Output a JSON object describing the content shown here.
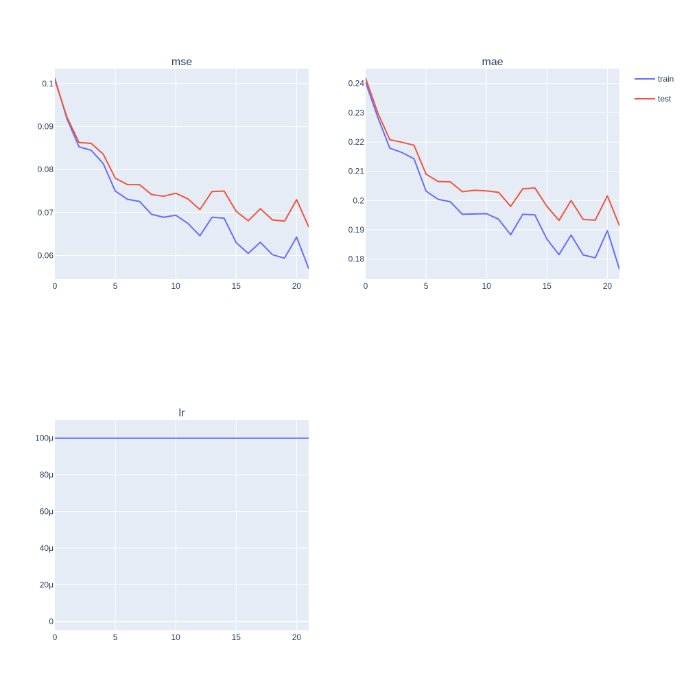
{
  "chart_data": [
    {
      "type": "line",
      "title": "mse",
      "xlim": [
        0,
        21
      ],
      "ylim": [
        0.0545,
        0.1035
      ],
      "x_ticks": [
        0,
        5,
        10,
        15,
        20
      ],
      "x_tick_labels": [
        "0",
        "5",
        "10",
        "15",
        "20"
      ],
      "y_ticks": [
        0.06,
        0.07,
        0.08,
        0.09,
        0.1
      ],
      "y_tick_labels": [
        "0.06",
        "0.07",
        "0.08",
        "0.09",
        "0.1"
      ],
      "grid": true,
      "x": [
        0,
        1,
        2,
        3,
        4,
        5,
        6,
        7,
        8,
        9,
        10,
        11,
        12,
        13,
        14,
        15,
        16,
        17,
        18,
        19,
        20,
        21
      ],
      "series": [
        {
          "name": "train",
          "color": "#636EFA",
          "values": [
            0.1012,
            0.0918,
            0.0853,
            0.0845,
            0.0814,
            0.075,
            0.0731,
            0.0726,
            0.0696,
            0.0689,
            0.0694,
            0.0675,
            0.0646,
            0.0689,
            0.0687,
            0.063,
            0.0605,
            0.0631,
            0.0602,
            0.0594,
            0.0643,
            0.057
          ]
        },
        {
          "name": "test",
          "color": "#EF553B",
          "values": [
            0.1008,
            0.0922,
            0.0863,
            0.0861,
            0.0836,
            0.078,
            0.0765,
            0.0765,
            0.0742,
            0.0738,
            0.0745,
            0.0732,
            0.0707,
            0.0749,
            0.075,
            0.0703,
            0.0681,
            0.0709,
            0.0683,
            0.068,
            0.073,
            0.0667
          ]
        }
      ]
    },
    {
      "type": "line",
      "title": "mae",
      "xlim": [
        0,
        21
      ],
      "ylim": [
        0.1731,
        0.2451
      ],
      "x_ticks": [
        0,
        5,
        10,
        15,
        20
      ],
      "x_tick_labels": [
        "0",
        "5",
        "10",
        "15",
        "20"
      ],
      "y_ticks": [
        0.18,
        0.19,
        0.2,
        0.21,
        0.22,
        0.23,
        0.24
      ],
      "y_tick_labels": [
        "0.18",
        "0.19",
        "0.2",
        "0.21",
        "0.22",
        "0.23",
        "0.24"
      ],
      "grid": true,
      "x": [
        0,
        1,
        2,
        3,
        4,
        5,
        6,
        7,
        8,
        9,
        10,
        11,
        12,
        13,
        14,
        15,
        16,
        17,
        18,
        19,
        20,
        21
      ],
      "series": [
        {
          "name": "train",
          "color": "#636EFA",
          "values": [
            0.2404,
            0.2285,
            0.2179,
            0.2164,
            0.2143,
            0.2032,
            0.2004,
            0.1996,
            0.1953,
            0.1954,
            0.1955,
            0.1936,
            0.1883,
            0.1953,
            0.1951,
            0.1868,
            0.1815,
            0.1882,
            0.1814,
            0.1804,
            0.1897,
            0.1765
          ]
        },
        {
          "name": "test",
          "color": "#EF553B",
          "values": [
            0.2418,
            0.23,
            0.2208,
            0.2199,
            0.2189,
            0.209,
            0.2065,
            0.2064,
            0.203,
            0.2035,
            0.2033,
            0.2028,
            0.198,
            0.204,
            0.2043,
            0.198,
            0.1932,
            0.2,
            0.1935,
            0.1933,
            0.2016,
            0.1914
          ]
        }
      ]
    },
    {
      "type": "line",
      "title": "lr",
      "xlim": [
        0,
        21
      ],
      "ylim": [
        -4.9e-06,
        0.00011
      ],
      "x_ticks": [
        0,
        5,
        10,
        15,
        20
      ],
      "x_tick_labels": [
        "0",
        "5",
        "10",
        "15",
        "20"
      ],
      "y_ticks": [
        0,
        2e-05,
        4e-05,
        6e-05,
        8e-05,
        0.0001
      ],
      "y_tick_labels": [
        "0",
        "20μ",
        "40μ",
        "60μ",
        "80μ",
        "100μ"
      ],
      "grid": true,
      "x": [
        0,
        1,
        2,
        3,
        4,
        5,
        6,
        7,
        8,
        9,
        10,
        11,
        12,
        13,
        14,
        15,
        16,
        17,
        18,
        19,
        20,
        21
      ],
      "series": [
        {
          "name": "train",
          "color": "#636EFA",
          "values": [
            0.0001,
            0.0001,
            0.0001,
            0.0001,
            0.0001,
            0.0001,
            0.0001,
            0.0001,
            0.0001,
            0.0001,
            0.0001,
            0.0001,
            0.0001,
            0.0001,
            0.0001,
            0.0001,
            0.0001,
            0.0001,
            0.0001,
            0.0001,
            0.0001,
            0.0001
          ]
        }
      ]
    }
  ],
  "legend": {
    "placement": "top-right",
    "items": [
      {
        "label": "train",
        "color": "#636EFA"
      },
      {
        "label": "test",
        "color": "#EF553B"
      }
    ]
  }
}
